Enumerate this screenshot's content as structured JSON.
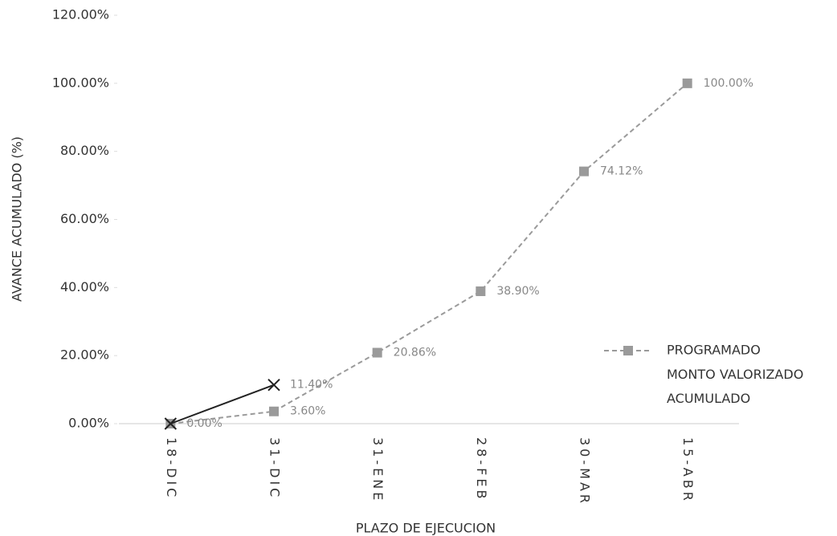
{
  "chart_data": {
    "type": "line",
    "x_label": "PLAZO DE EJECUCION",
    "y_label": "AVANCE ACUMULADO (%)",
    "categories": [
      "18-DIC",
      "31-DIC",
      "31-ENE",
      "28-FEB",
      "30-MAR",
      "15-ABR"
    ],
    "series": [
      {
        "name": "PROGRAMADO",
        "color": "#9a9a9a",
        "dashed": true,
        "marker": "square",
        "values": [
          0,
          3.6,
          20.86,
          38.9,
          74.12,
          100
        ],
        "value_labels": [
          "0.00%",
          "3.60%",
          "20.86%",
          "38.90%",
          "74.12%",
          "100.00%"
        ]
      },
      {
        "name": "MONTO VALORIZADO ACUMULADO",
        "color": "#222222",
        "dashed": false,
        "marker": "x",
        "values": [
          0,
          11.4,
          null,
          null,
          null,
          null
        ],
        "value_labels": [
          null,
          "11.40%",
          null,
          null,
          null,
          null
        ]
      }
    ],
    "ylim": [
      0,
      120
    ],
    "yticks": [
      {
        "value": 0,
        "label": "0.00%"
      },
      {
        "value": 20,
        "label": "20.00%"
      },
      {
        "value": 40,
        "label": "40.00%"
      },
      {
        "value": 60,
        "label": "60.00%"
      },
      {
        "value": 80,
        "label": "80.00%"
      },
      {
        "value": 100,
        "label": "100.00%"
      },
      {
        "value": 120,
        "label": "120.00%"
      }
    ],
    "grid": false,
    "legend": "right"
  }
}
